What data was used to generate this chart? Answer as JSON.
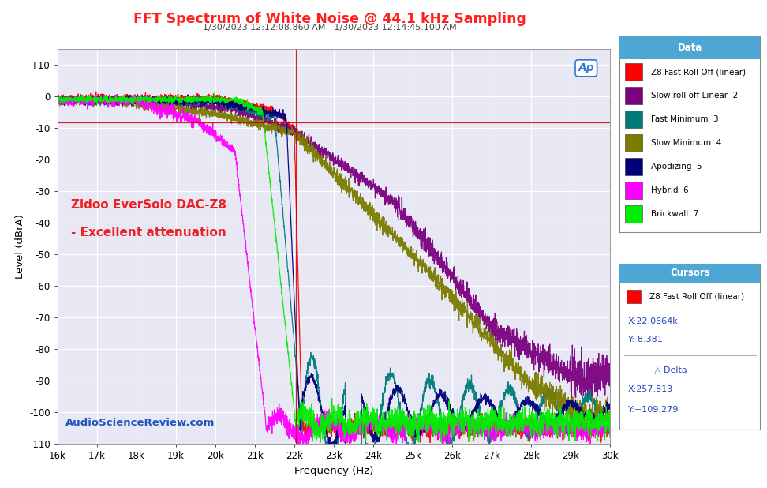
{
  "title": "FFT Spectrum of White Noise @ 44.1 kHz Sampling",
  "subtitle": "1/30/2023 12:12:08.860 AM - 1/30/2023 12:14:45.100 AM",
  "xlabel": "Frequency (Hz)",
  "ylabel": "Level (dBrA)",
  "xlim": [
    16000,
    30000
  ],
  "ylim": [
    -110,
    15
  ],
  "yticks": [
    10,
    0,
    -10,
    -20,
    -30,
    -40,
    -50,
    -60,
    -70,
    -80,
    -90,
    -100,
    -110
  ],
  "ytick_labels": [
    "+10",
    "0",
    "-10",
    "-20",
    "-30",
    "-40",
    "-50",
    "-60",
    "-70",
    "-80",
    "-90",
    "-100",
    "-110"
  ],
  "xticks": [
    16000,
    17000,
    18000,
    19000,
    20000,
    21000,
    22000,
    23000,
    24000,
    25000,
    26000,
    27000,
    28000,
    29000,
    30000
  ],
  "xtick_labels": [
    "16k",
    "17k",
    "18k",
    "19k",
    "20k",
    "21k",
    "22k",
    "23k",
    "24k",
    "25k",
    "26k",
    "27k",
    "28k",
    "29k",
    "30k"
  ],
  "fig_bg_color": "#ffffff",
  "plot_bg_color": "#e8e8f4",
  "grid_color": "#ffffff",
  "title_color": "#ff2020",
  "subtitle_color": "#444444",
  "annotation_color": "#ee2222",
  "annotation_text1": "Zidoo EverSolo DAC-Z8",
  "annotation_text2": "- Excellent attenuation",
  "watermark_color": "#2255bb",
  "watermark_text": "AudioScienceReview.com",
  "legend_title": "Data",
  "legend_header_bg": "#4da6d4",
  "legend_bg": "#ffffff",
  "cursors_title": "Cursors",
  "cursors_header_bg": "#4da6d4",
  "cursors_bg": "#ffffff",
  "cursor_label": "Z8 Fast Roll Off (linear)",
  "cursor_x": "X:22.0664k",
  "cursor_y": "Y:-8.381",
  "delta_label": "△ Delta",
  "delta_x": "X:257.813",
  "delta_y": "Y:+109.279",
  "series": [
    {
      "name": "Z8 Fast Roll Off (linear)",
      "color": "#ff0000"
    },
    {
      "name": "Slow roll off Linear  2",
      "color": "#7b0080"
    },
    {
      "name": "Fast Minimum  3",
      "color": "#007b7b"
    },
    {
      "name": "Slow Minimum  4",
      "color": "#7b7b00"
    },
    {
      "name": "Apodizing  5",
      "color": "#00007b"
    },
    {
      "name": "Hybrid  6",
      "color": "#ff00ff"
    },
    {
      "name": "Brickwall  7",
      "color": "#00ee00"
    }
  ],
  "vline_x": 22050,
  "hline_y": -8.381,
  "ap_logo_color": "#3377cc",
  "cursor_color": "#ff0000"
}
